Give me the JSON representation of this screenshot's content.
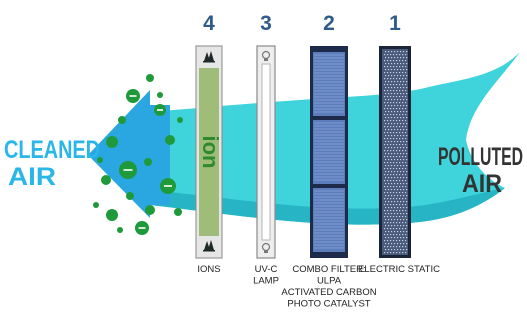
{
  "title_left": [
    "CLEANED",
    "AIR"
  ],
  "title_right": [
    "POLLUTED",
    "AIR"
  ],
  "stages": [
    {
      "number": "4",
      "label": [
        "IONS"
      ],
      "type": "ion-emitter",
      "panel_text": "ion"
    },
    {
      "number": "3",
      "label": [
        "UV-C",
        "LAMP"
      ],
      "type": "uv-lamp"
    },
    {
      "number": "2",
      "label": [
        "COMBO FILTER:",
        "ULPA",
        "ACTIVATED CARBON",
        "PHOTO CATALYST"
      ],
      "type": "combo-filter"
    },
    {
      "number": "1",
      "label": [
        "ELECTRIC STATIC"
      ],
      "type": "electrostatic-filter"
    }
  ],
  "colors": {
    "cleaned_text": "#29b6e8",
    "polluted_text": "#333333",
    "airflow_dark": "#27b5c6",
    "airflow_light": "#3fd4dc",
    "arrow_blue": "#2aa6e0",
    "ions_green": "#1f9a3a",
    "number_color": "#2f5b8a",
    "ion_panel": "#9fbd78",
    "filter_dark": "#1e2a4a",
    "filter_blue": "#5b7dbb"
  },
  "icons": [
    "tree-icon",
    "bulb-icon",
    "minus-ion-icon"
  ]
}
